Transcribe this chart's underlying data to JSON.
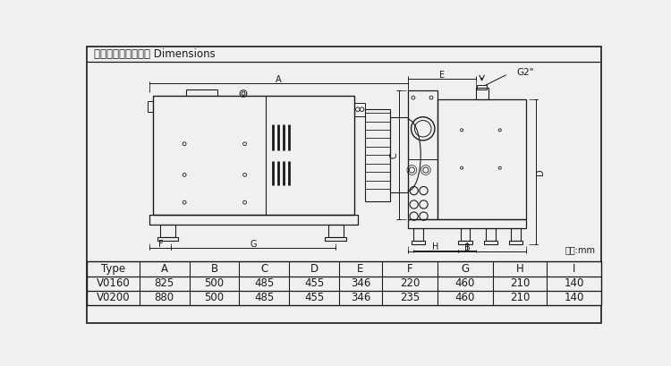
{
  "title": "外型尺寸及安裝尺寸 Dimensions",
  "unit_label": "單位:mm",
  "table_headers": [
    "Type",
    "A",
    "B",
    "C",
    "D",
    "E",
    "F",
    "G",
    "H",
    "I"
  ],
  "table_rows": [
    [
      "V0160",
      "825",
      "500",
      "485",
      "455",
      "346",
      "220",
      "460",
      "210",
      "140"
    ],
    [
      "V0200",
      "880",
      "500",
      "485",
      "455",
      "346",
      "235",
      "460",
      "210",
      "140"
    ]
  ],
  "bg_color": "#f0f0f0",
  "line_color": "#1a1a1a",
  "white": "#ffffff"
}
